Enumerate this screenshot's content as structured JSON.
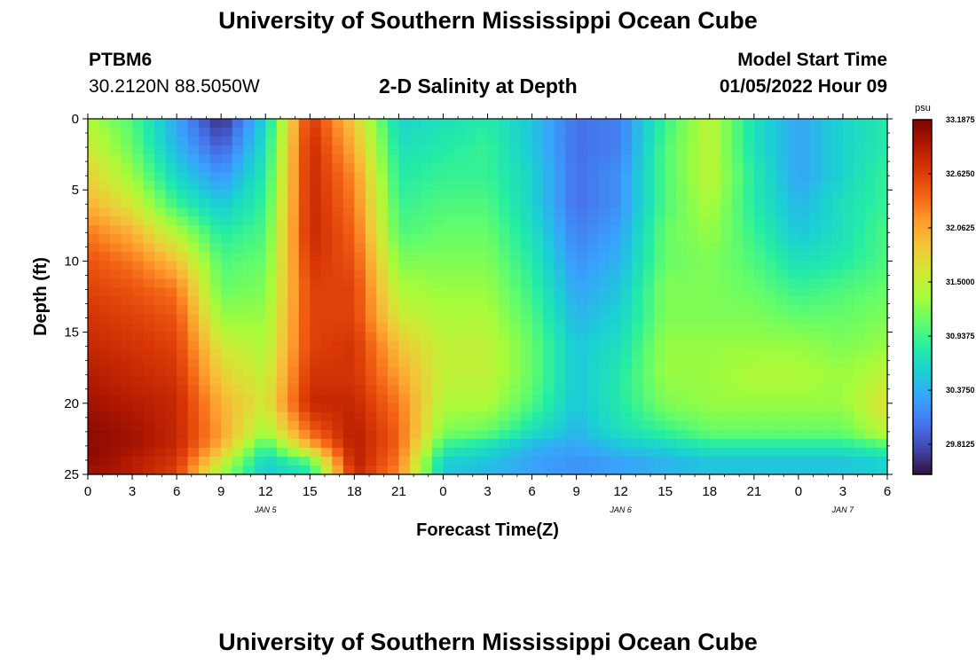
{
  "header": {
    "title": "University of Southern Mississippi Ocean Cube",
    "station_id": "PTBM6",
    "station_location": "30.2120N  88.5050W",
    "plot_title": "2-D Salinity at Depth",
    "model_start_label": "Model Start Time",
    "model_start_value": "01/05/2022 Hour 09"
  },
  "footer": {
    "title": "University of Southern Mississippi Ocean Cube"
  },
  "chart_data": {
    "type": "heatmap",
    "title": "2-D Salinity at Depth",
    "xlabel": "Forecast Time(Z)",
    "ylabel": "Depth (ft)",
    "x_hours_from_jan5_00z": [
      0,
      54
    ],
    "x_ticks": [
      "0",
      "3",
      "6",
      "9",
      "12",
      "15",
      "18",
      "21",
      "0",
      "3",
      "6",
      "9",
      "12",
      "15",
      "18",
      "21",
      "0",
      "3",
      "6"
    ],
    "date_labels": [
      {
        "label": "JAN 5",
        "hour": 12
      },
      {
        "label": "JAN 6",
        "hour": 36
      },
      {
        "label": "JAN 7",
        "hour": 51
      }
    ],
    "y_ticks": [
      "0",
      "5",
      "10",
      "15",
      "20",
      "25"
    ],
    "ylim": [
      0,
      25
    ],
    "y_inverted": true,
    "colorbar": {
      "units": "psu",
      "min": 29.5,
      "max": 33.1875,
      "tick_labels": [
        "33.1875",
        "32.6250",
        "32.0625",
        "31.5000",
        "30.9375",
        "30.3750",
        "29.8125"
      ],
      "colors": [
        "#30123b",
        "#4145ab",
        "#4675ed",
        "#39a2fc",
        "#1bcfd4",
        "#24eca6",
        "#61fc6c",
        "#a4fc3b",
        "#d1e834",
        "#f3c63a",
        "#fe9b2d",
        "#f36315",
        "#d93806",
        "#b11901",
        "#7a0402"
      ]
    },
    "depth_levels_ft": [
      0,
      2,
      4,
      6,
      8,
      10,
      12,
      14,
      16,
      18,
      20,
      22,
      23,
      24,
      25
    ],
    "time_hours": [
      0,
      3,
      6,
      9,
      12,
      15,
      18,
      21,
      24,
      27,
      30,
      33,
      36,
      39,
      42,
      45,
      48,
      51,
      54
    ],
    "salinity_psu": [
      [
        31.4,
        31.0,
        30.3,
        29.6,
        30.6,
        32.7,
        31.8,
        30.6,
        30.7,
        30.8,
        30.5,
        30.0,
        30.1,
        30.9,
        31.5,
        30.7,
        30.3,
        30.6,
        30.8
      ],
      [
        31.6,
        31.1,
        30.4,
        29.9,
        30.7,
        32.8,
        32.0,
        30.7,
        30.8,
        30.9,
        30.5,
        30.0,
        30.1,
        31.0,
        31.5,
        30.7,
        30.3,
        30.6,
        30.8
      ],
      [
        31.8,
        31.3,
        30.6,
        30.2,
        30.8,
        32.8,
        32.2,
        30.8,
        30.9,
        30.9,
        30.6,
        30.0,
        30.2,
        31.0,
        31.5,
        30.8,
        30.3,
        30.6,
        30.9
      ],
      [
        32.0,
        31.6,
        30.9,
        30.5,
        30.9,
        32.8,
        32.3,
        30.9,
        31.0,
        31.0,
        30.6,
        30.0,
        30.2,
        31.0,
        31.4,
        30.8,
        30.4,
        30.7,
        30.9
      ],
      [
        32.3,
        32.0,
        31.4,
        30.8,
        31.0,
        32.8,
        32.4,
        31.0,
        31.1,
        31.1,
        30.7,
        30.1,
        30.3,
        31.1,
        31.3,
        30.9,
        30.5,
        30.7,
        31.0
      ],
      [
        32.5,
        32.3,
        31.9,
        31.0,
        31.1,
        32.7,
        32.5,
        31.2,
        31.2,
        31.2,
        30.8,
        30.2,
        30.4,
        31.1,
        31.2,
        31.0,
        30.7,
        30.8,
        31.0
      ],
      [
        32.6,
        32.5,
        32.3,
        31.1,
        31.2,
        32.6,
        32.6,
        31.4,
        31.3,
        31.3,
        30.9,
        30.3,
        30.5,
        31.2,
        31.2,
        31.1,
        30.9,
        31.0,
        31.1
      ],
      [
        32.7,
        32.6,
        32.5,
        31.3,
        31.3,
        32.6,
        32.6,
        31.6,
        31.4,
        31.4,
        31.0,
        30.4,
        30.6,
        31.2,
        31.2,
        31.2,
        31.1,
        31.1,
        31.2
      ],
      [
        32.8,
        32.7,
        32.6,
        31.6,
        31.4,
        32.6,
        32.7,
        31.9,
        31.5,
        31.5,
        31.1,
        30.5,
        30.7,
        31.3,
        31.3,
        31.3,
        31.3,
        31.2,
        31.3
      ],
      [
        32.9,
        32.8,
        32.7,
        31.8,
        31.5,
        32.7,
        32.7,
        32.1,
        31.5,
        31.5,
        31.1,
        30.5,
        30.8,
        31.3,
        31.3,
        31.4,
        31.4,
        31.3,
        31.5
      ],
      [
        33.0,
        32.9,
        32.8,
        32.0,
        31.6,
        32.8,
        32.8,
        32.3,
        31.4,
        31.4,
        31.0,
        30.5,
        30.8,
        31.2,
        31.3,
        31.3,
        31.3,
        31.3,
        31.7
      ],
      [
        33.1,
        33.0,
        32.8,
        32.1,
        31.3,
        32.4,
        32.9,
        32.4,
        31.2,
        31.1,
        30.7,
        30.4,
        30.7,
        30.9,
        31.1,
        31.1,
        31.1,
        31.1,
        31.5
      ],
      [
        33.1,
        33.0,
        32.8,
        32.0,
        30.9,
        32.0,
        32.9,
        32.4,
        30.9,
        30.7,
        30.4,
        30.3,
        30.5,
        30.6,
        30.8,
        30.8,
        30.8,
        30.8,
        31.0
      ],
      [
        33.1,
        32.9,
        32.7,
        31.6,
        30.6,
        31.1,
        32.9,
        32.3,
        30.6,
        30.5,
        30.3,
        30.2,
        30.3,
        30.4,
        30.5,
        30.5,
        30.5,
        30.5,
        30.6
      ],
      [
        33.0,
        32.9,
        32.6,
        31.3,
        30.5,
        30.7,
        32.8,
        32.2,
        30.5,
        30.4,
        30.3,
        30.2,
        30.3,
        30.4,
        30.5,
        30.5,
        30.5,
        30.5,
        30.6
      ]
    ]
  }
}
